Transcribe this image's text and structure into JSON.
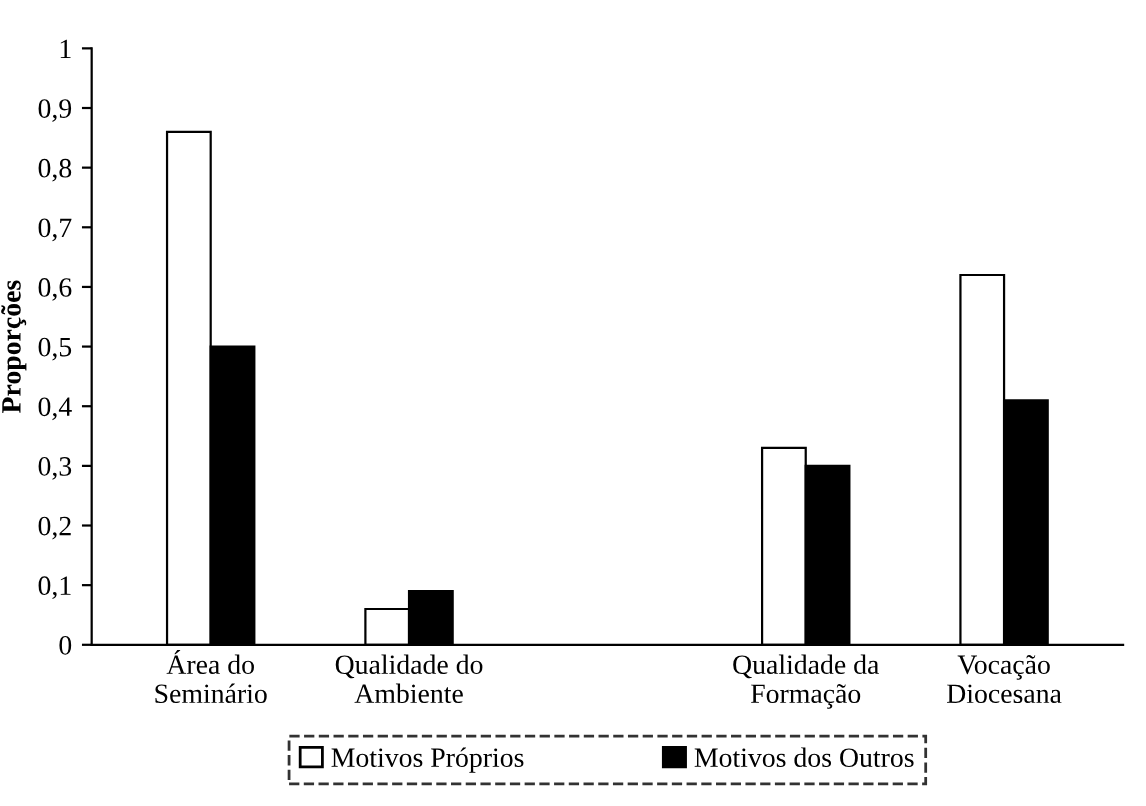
{
  "chart_data": {
    "type": "bar",
    "ylabel": "Proporções",
    "categories": [
      "Área do\nSeminário",
      "Qualidade do\nAmbiente",
      null,
      "Qualidade da\nFormação",
      "Vocação\nDiocesana"
    ],
    "series": [
      {
        "name": "Motivos Próprios",
        "color": "#ffffff",
        "values": [
          0.86,
          0.06,
          null,
          0.33,
          0.62
        ]
      },
      {
        "name": "Motivos dos Outros",
        "color": "#000000",
        "values": [
          0.5,
          0.09,
          null,
          0.3,
          0.41
        ]
      }
    ],
    "ylim": [
      0,
      1
    ],
    "yticks": [
      0,
      {
        "value": 0.1,
        "label": "0,1"
      },
      {
        "value": 0.2,
        "label": "0,2"
      },
      {
        "value": 0.3,
        "label": "0,3"
      },
      {
        "value": 0.4,
        "label": "0,4"
      },
      {
        "value": 0.5,
        "label": "0,5"
      },
      {
        "value": 0.6,
        "label": "0,6"
      },
      {
        "value": 0.7,
        "label": "0,7"
      },
      {
        "value": 0.8,
        "label": "0,8"
      },
      {
        "value": 0.9,
        "label": "0,9"
      },
      1
    ],
    "grid": false,
    "legend": "bottom"
  }
}
